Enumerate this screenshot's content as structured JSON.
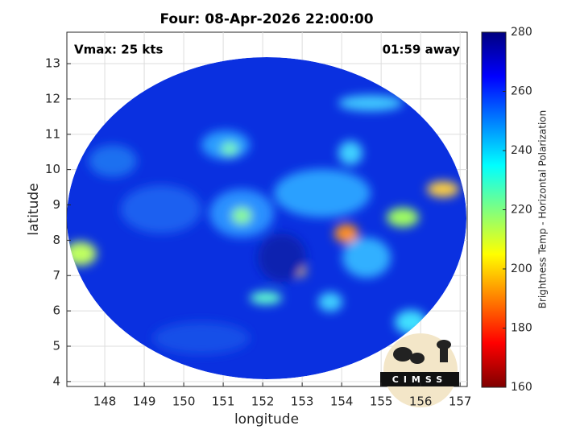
{
  "chart_data": {
    "type": "heatmap",
    "title": "Four: 08-Apr-2026 22:00:00",
    "xlabel": "longitude",
    "ylabel": "latitude",
    "xlim": [
      147.04,
      157.18
    ],
    "xticks": [
      148,
      149,
      150,
      151,
      152,
      153,
      154,
      155,
      156,
      157
    ],
    "ylim": [
      3.86,
      13.89
    ],
    "yticks": [
      4,
      5,
      6,
      7,
      8,
      9,
      10,
      11,
      12,
      13
    ],
    "grid": true,
    "annotations": [
      "Vmax: 25 kts",
      "01:59 away"
    ],
    "colorbar": {
      "label": "Brightness Temp - Horizontal Polarization",
      "lim": [
        160,
        280
      ],
      "ticks": [
        160,
        180,
        200,
        220,
        240,
        260,
        280
      ],
      "colormap": "jet"
    },
    "logo": "CIMSS"
  }
}
